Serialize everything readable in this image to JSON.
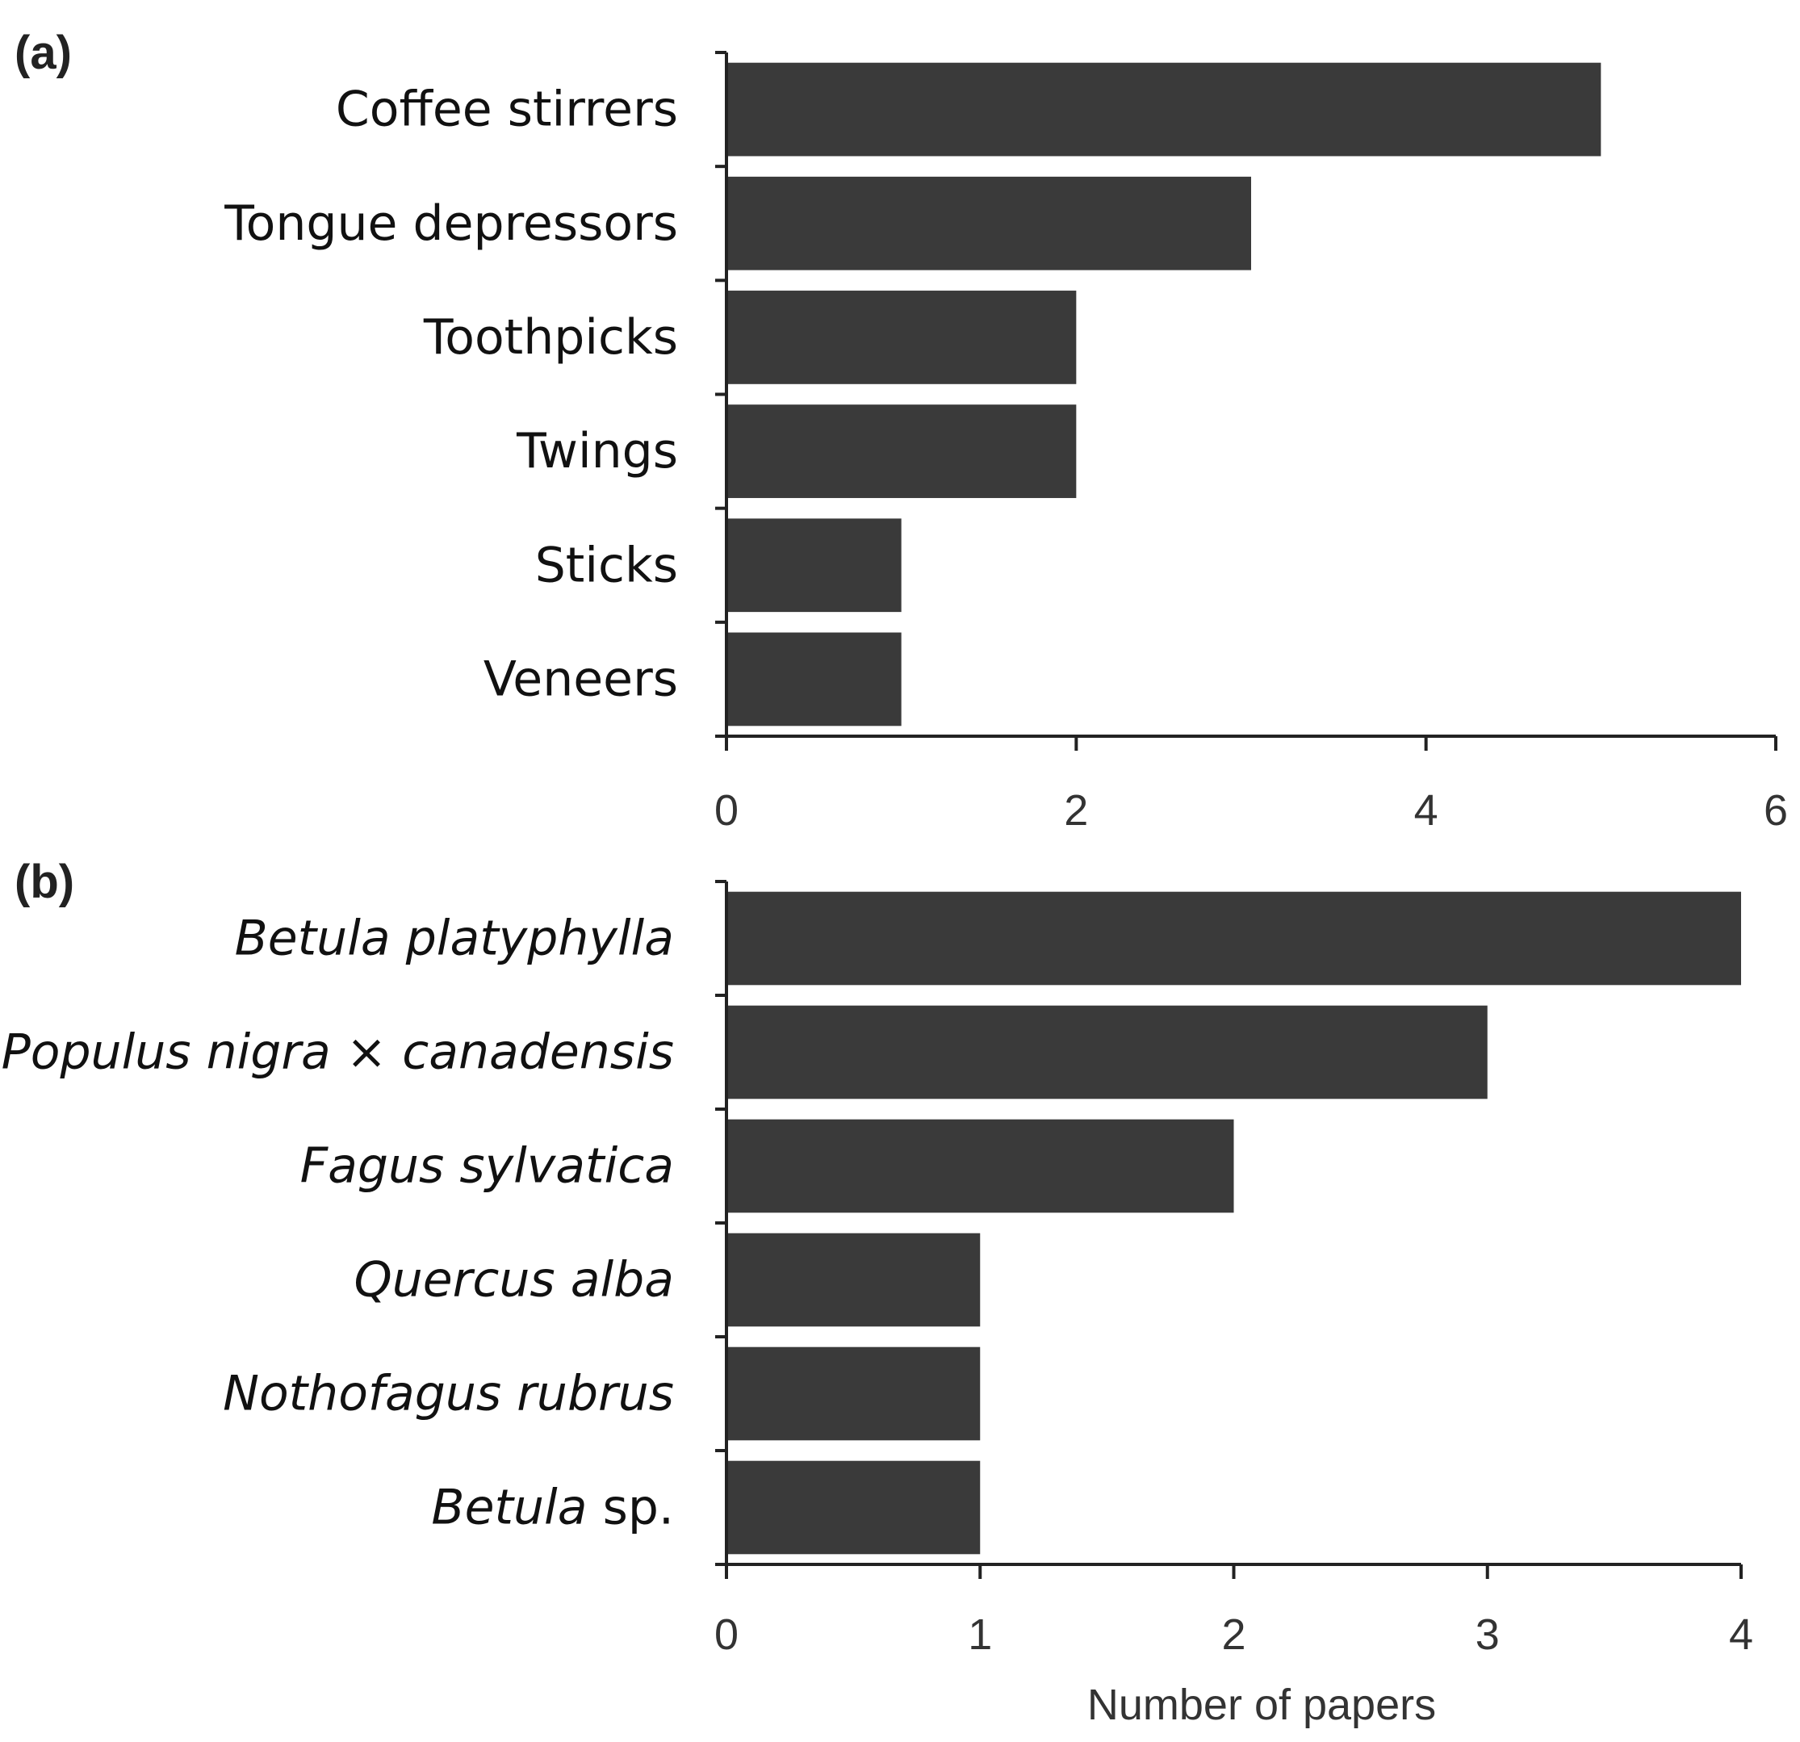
{
  "figure": {
    "xlabel": "Number of papers"
  },
  "chart_data": [
    {
      "type": "bar",
      "orientation": "horizontal",
      "panel_label": "(a)",
      "categories": [
        "Coffee stirrers",
        "Tongue depressors",
        "Toothpicks",
        "Twings",
        "Sticks",
        "Veneers"
      ],
      "values": [
        5,
        3,
        2,
        2,
        1,
        1
      ],
      "xlim": [
        0,
        6
      ],
      "xticks": [
        0,
        2,
        4,
        6
      ],
      "xtick_labels": [
        "0",
        "2",
        "4",
        "6"
      ],
      "bar_color": "#3a3a3a",
      "grid": false
    },
    {
      "type": "bar",
      "orientation": "horizontal",
      "panel_label": "(b)",
      "categories": [
        "Betula platyphylla",
        "Populus nigra × canadensis",
        "Fagus sylvatica",
        "Quercus alba",
        "Nothofagus rubrus",
        "Betula sp."
      ],
      "category_italic": [
        true,
        true,
        true,
        true,
        true,
        "partial"
      ],
      "category_italic_part": [
        "",
        "",
        "",
        "",
        "",
        "Betula"
      ],
      "category_normal_part": [
        "",
        "",
        "",
        "",
        "",
        " sp."
      ],
      "values": [
        4,
        3,
        2,
        1,
        1,
        1
      ],
      "xlim": [
        0,
        4
      ],
      "xticks": [
        0,
        1,
        2,
        3,
        4
      ],
      "xtick_labels": [
        "0",
        "1",
        "2",
        "3",
        "4"
      ],
      "bar_color": "#3a3a3a",
      "grid": false
    }
  ]
}
